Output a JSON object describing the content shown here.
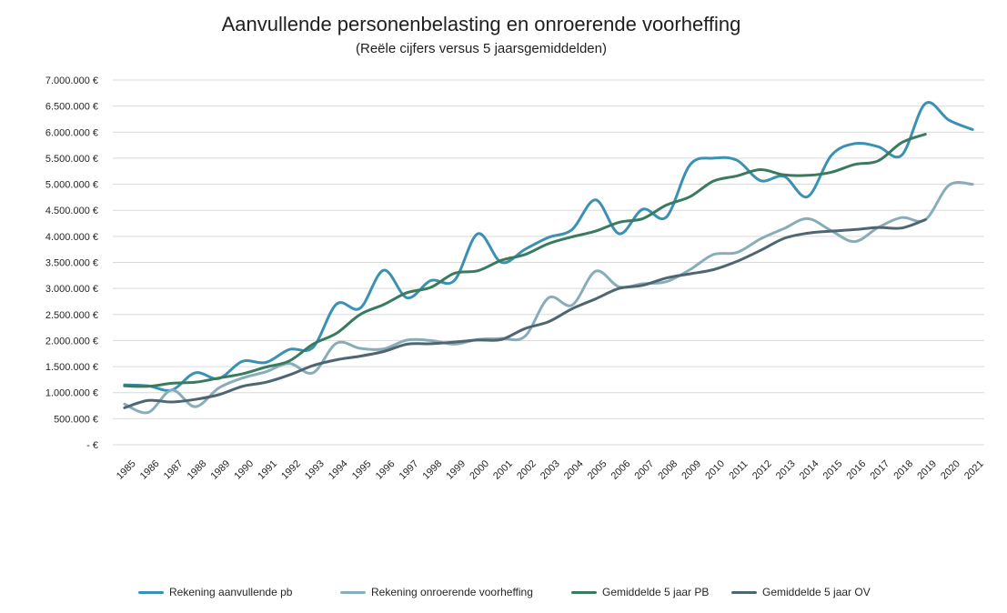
{
  "chart_data": {
    "type": "line",
    "title": "Aanvullende personenbelasting en onroerende voorheffing",
    "subtitle": "(Reële cijfers versus 5 jaarsgemiddelden)",
    "xlabel": "",
    "ylabel": "",
    "ylim": [
      0,
      7000000
    ],
    "y_ticks": [
      0,
      500000,
      1000000,
      1500000,
      2000000,
      2500000,
      3000000,
      3500000,
      4000000,
      4500000,
      5000000,
      5500000,
      6000000,
      6500000,
      7000000
    ],
    "y_tick_labels": [
      "- €",
      "500.000 €",
      "1.000.000 €",
      "1.500.000 €",
      "2.000.000 €",
      "2.500.000 €",
      "3.000.000 €",
      "3.500.000 €",
      "4.000.000 €",
      "4.500.000 €",
      "5.000.000 €",
      "5.500.000 €",
      "6.000.000 €",
      "6.500.000 €",
      "7.000.000 €"
    ],
    "categories": [
      "1985",
      "1986",
      "1987",
      "1988",
      "1989",
      "1990",
      "1991",
      "1992",
      "1993",
      "1994",
      "1995",
      "1996",
      "1997",
      "1998",
      "1999",
      "2000",
      "2001",
      "2002",
      "2003",
      "2004",
      "2005",
      "2006",
      "2007",
      "2008",
      "2009",
      "2010",
      "2011",
      "2012",
      "2013",
      "2014",
      "2015",
      "2016",
      "2017",
      "2018",
      "2019",
      "2020",
      "2021"
    ],
    "grid": true,
    "legend_position": "bottom",
    "series": [
      {
        "name": "Rekening aanvullende pb",
        "color": "#3a91b3",
        "values": [
          1150000,
          1130000,
          1050000,
          1380000,
          1270000,
          1600000,
          1580000,
          1830000,
          1870000,
          2700000,
          2620000,
          3350000,
          2820000,
          3150000,
          3150000,
          4050000,
          3500000,
          3750000,
          3980000,
          4130000,
          4700000,
          4050000,
          4520000,
          4370000,
          5370000,
          5500000,
          5460000,
          5070000,
          5150000,
          4760000,
          5550000,
          5780000,
          5720000,
          5560000,
          6550000,
          6230000,
          6050000
        ]
      },
      {
        "name": "Rekening onroerende voorheffing",
        "color": "#89adb8",
        "values": [
          780000,
          620000,
          1050000,
          730000,
          1090000,
          1280000,
          1400000,
          1560000,
          1380000,
          1950000,
          1850000,
          1840000,
          2010000,
          2000000,
          1930000,
          2020000,
          2040000,
          2080000,
          2820000,
          2680000,
          3330000,
          3030000,
          3090000,
          3130000,
          3360000,
          3650000,
          3690000,
          3950000,
          4150000,
          4340000,
          4110000,
          3900000,
          4170000,
          4360000,
          4320000,
          4980000,
          5000000
        ]
      },
      {
        "name": "Gemiddelde 5 jaar PB",
        "color": "#3a7a5e",
        "values": [
          1130000,
          1120000,
          1180000,
          1200000,
          1280000,
          1360000,
          1490000,
          1610000,
          1930000,
          2140000,
          2500000,
          2690000,
          2920000,
          3020000,
          3290000,
          3340000,
          3540000,
          3650000,
          3860000,
          3990000,
          4100000,
          4270000,
          4340000,
          4600000,
          4760000,
          5060000,
          5160000,
          5280000,
          5180000,
          5170000,
          5230000,
          5380000,
          5450000,
          5800000,
          5960000,
          null,
          null
        ]
      },
      {
        "name": "Gemiddelde 5 jaar OV",
        "color": "#4e6672",
        "values": [
          710000,
          850000,
          820000,
          870000,
          960000,
          1120000,
          1200000,
          1340000,
          1520000,
          1630000,
          1700000,
          1790000,
          1930000,
          1940000,
          1970000,
          2010000,
          2020000,
          2230000,
          2360000,
          2610000,
          2800000,
          3000000,
          3060000,
          3200000,
          3280000,
          3360000,
          3520000,
          3730000,
          3960000,
          4060000,
          4100000,
          4130000,
          4170000,
          4160000,
          4320000,
          null,
          null
        ]
      }
    ]
  }
}
